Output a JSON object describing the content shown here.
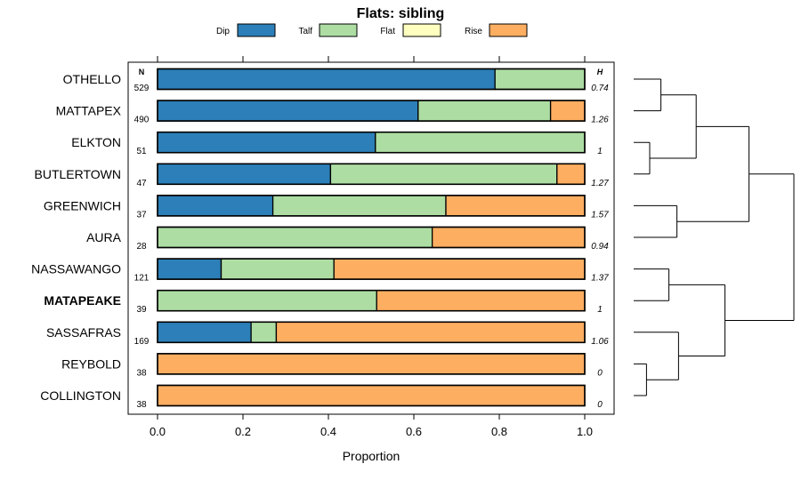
{
  "chart_data": {
    "type": "bar",
    "orientation": "horizontal",
    "stacked": true,
    "title": "Flats: sibling",
    "xlabel": "Proportion",
    "xlim": [
      0,
      1
    ],
    "xticks": [
      "0.0",
      "0.2",
      "0.4",
      "0.6",
      "0.8",
      "1.0"
    ],
    "n_header": "N",
    "h_header": "H",
    "legend_position": "top",
    "series": [
      {
        "name": "Dip",
        "color": "#2C7FB8"
      },
      {
        "name": "Talf",
        "color": "#ADDDA3"
      },
      {
        "name": "Flat",
        "color": "#FFFFBF"
      },
      {
        "name": "Rise",
        "color": "#FDAE61"
      }
    ],
    "categories": [
      {
        "label": "OTHELLO",
        "bold": false,
        "n": "529",
        "h": "0.74",
        "values": [
          0.79,
          0.21,
          0,
          0
        ]
      },
      {
        "label": "MATTAPEX",
        "bold": false,
        "n": "490",
        "h": "1.26",
        "values": [
          0.61,
          0.31,
          0,
          0.08
        ]
      },
      {
        "label": "ELKTON",
        "bold": false,
        "n": "51",
        "h": "1",
        "values": [
          0.51,
          0.49,
          0,
          0
        ]
      },
      {
        "label": "BUTLERTOWN",
        "bold": false,
        "n": "47",
        "h": "1.27",
        "values": [
          0.405,
          0.53,
          0,
          0.065
        ]
      },
      {
        "label": "GREENWICH",
        "bold": false,
        "n": "37",
        "h": "1.57",
        "values": [
          0.27,
          0.405,
          0,
          0.325
        ]
      },
      {
        "label": "AURA",
        "bold": false,
        "n": "28",
        "h": "0.94",
        "values": [
          0,
          0.643,
          0,
          0.357
        ]
      },
      {
        "label": "NASSAWANGO",
        "bold": false,
        "n": "121",
        "h": "1.37",
        "values": [
          0.149,
          0.264,
          0,
          0.587
        ]
      },
      {
        "label": "MATAPEAKE",
        "bold": true,
        "n": "39",
        "h": "1",
        "values": [
          0,
          0.513,
          0,
          0.487
        ]
      },
      {
        "label": "SASSAFRAS",
        "bold": false,
        "n": "169",
        "h": "1.06",
        "values": [
          0.219,
          0.059,
          0,
          0.722
        ]
      },
      {
        "label": "REYBOLD",
        "bold": false,
        "n": "38",
        "h": "0",
        "values": [
          0,
          0,
          0,
          1
        ]
      },
      {
        "label": "COLLINGTON",
        "bold": false,
        "n": "38",
        "h": "0",
        "values": [
          0,
          0,
          0,
          1
        ]
      }
    ],
    "dendrogram": {
      "leaves": [
        "OTHELLO",
        "MATTAPEX",
        "ELKTON",
        "BUTLERTOWN",
        "GREENWICH",
        "AURA",
        "NASSAWANGO",
        "MATAPEAKE",
        "SASSAFRAS",
        "REYBOLD",
        "COLLINGTON"
      ],
      "merges": [
        {
          "a": "L0",
          "b": "L1",
          "height": 0.17
        },
        {
          "a": "L2",
          "b": "L3",
          "height": 0.1
        },
        {
          "a": "L4",
          "b": "L5",
          "height": 0.27
        },
        {
          "a": "L6",
          "b": "L7",
          "height": 0.22
        },
        {
          "a": "L9",
          "b": "L10",
          "height": 0.08
        },
        {
          "a": "M0",
          "b": "M1",
          "height": 0.39
        },
        {
          "a": "L8",
          "b": "M4",
          "height": 0.28
        },
        {
          "a": "M5",
          "b": "M2",
          "height": 0.72
        },
        {
          "a": "M3",
          "b": "M6",
          "height": 0.57
        },
        {
          "a": "M7",
          "b": "M8",
          "height": 1.0
        }
      ]
    }
  }
}
